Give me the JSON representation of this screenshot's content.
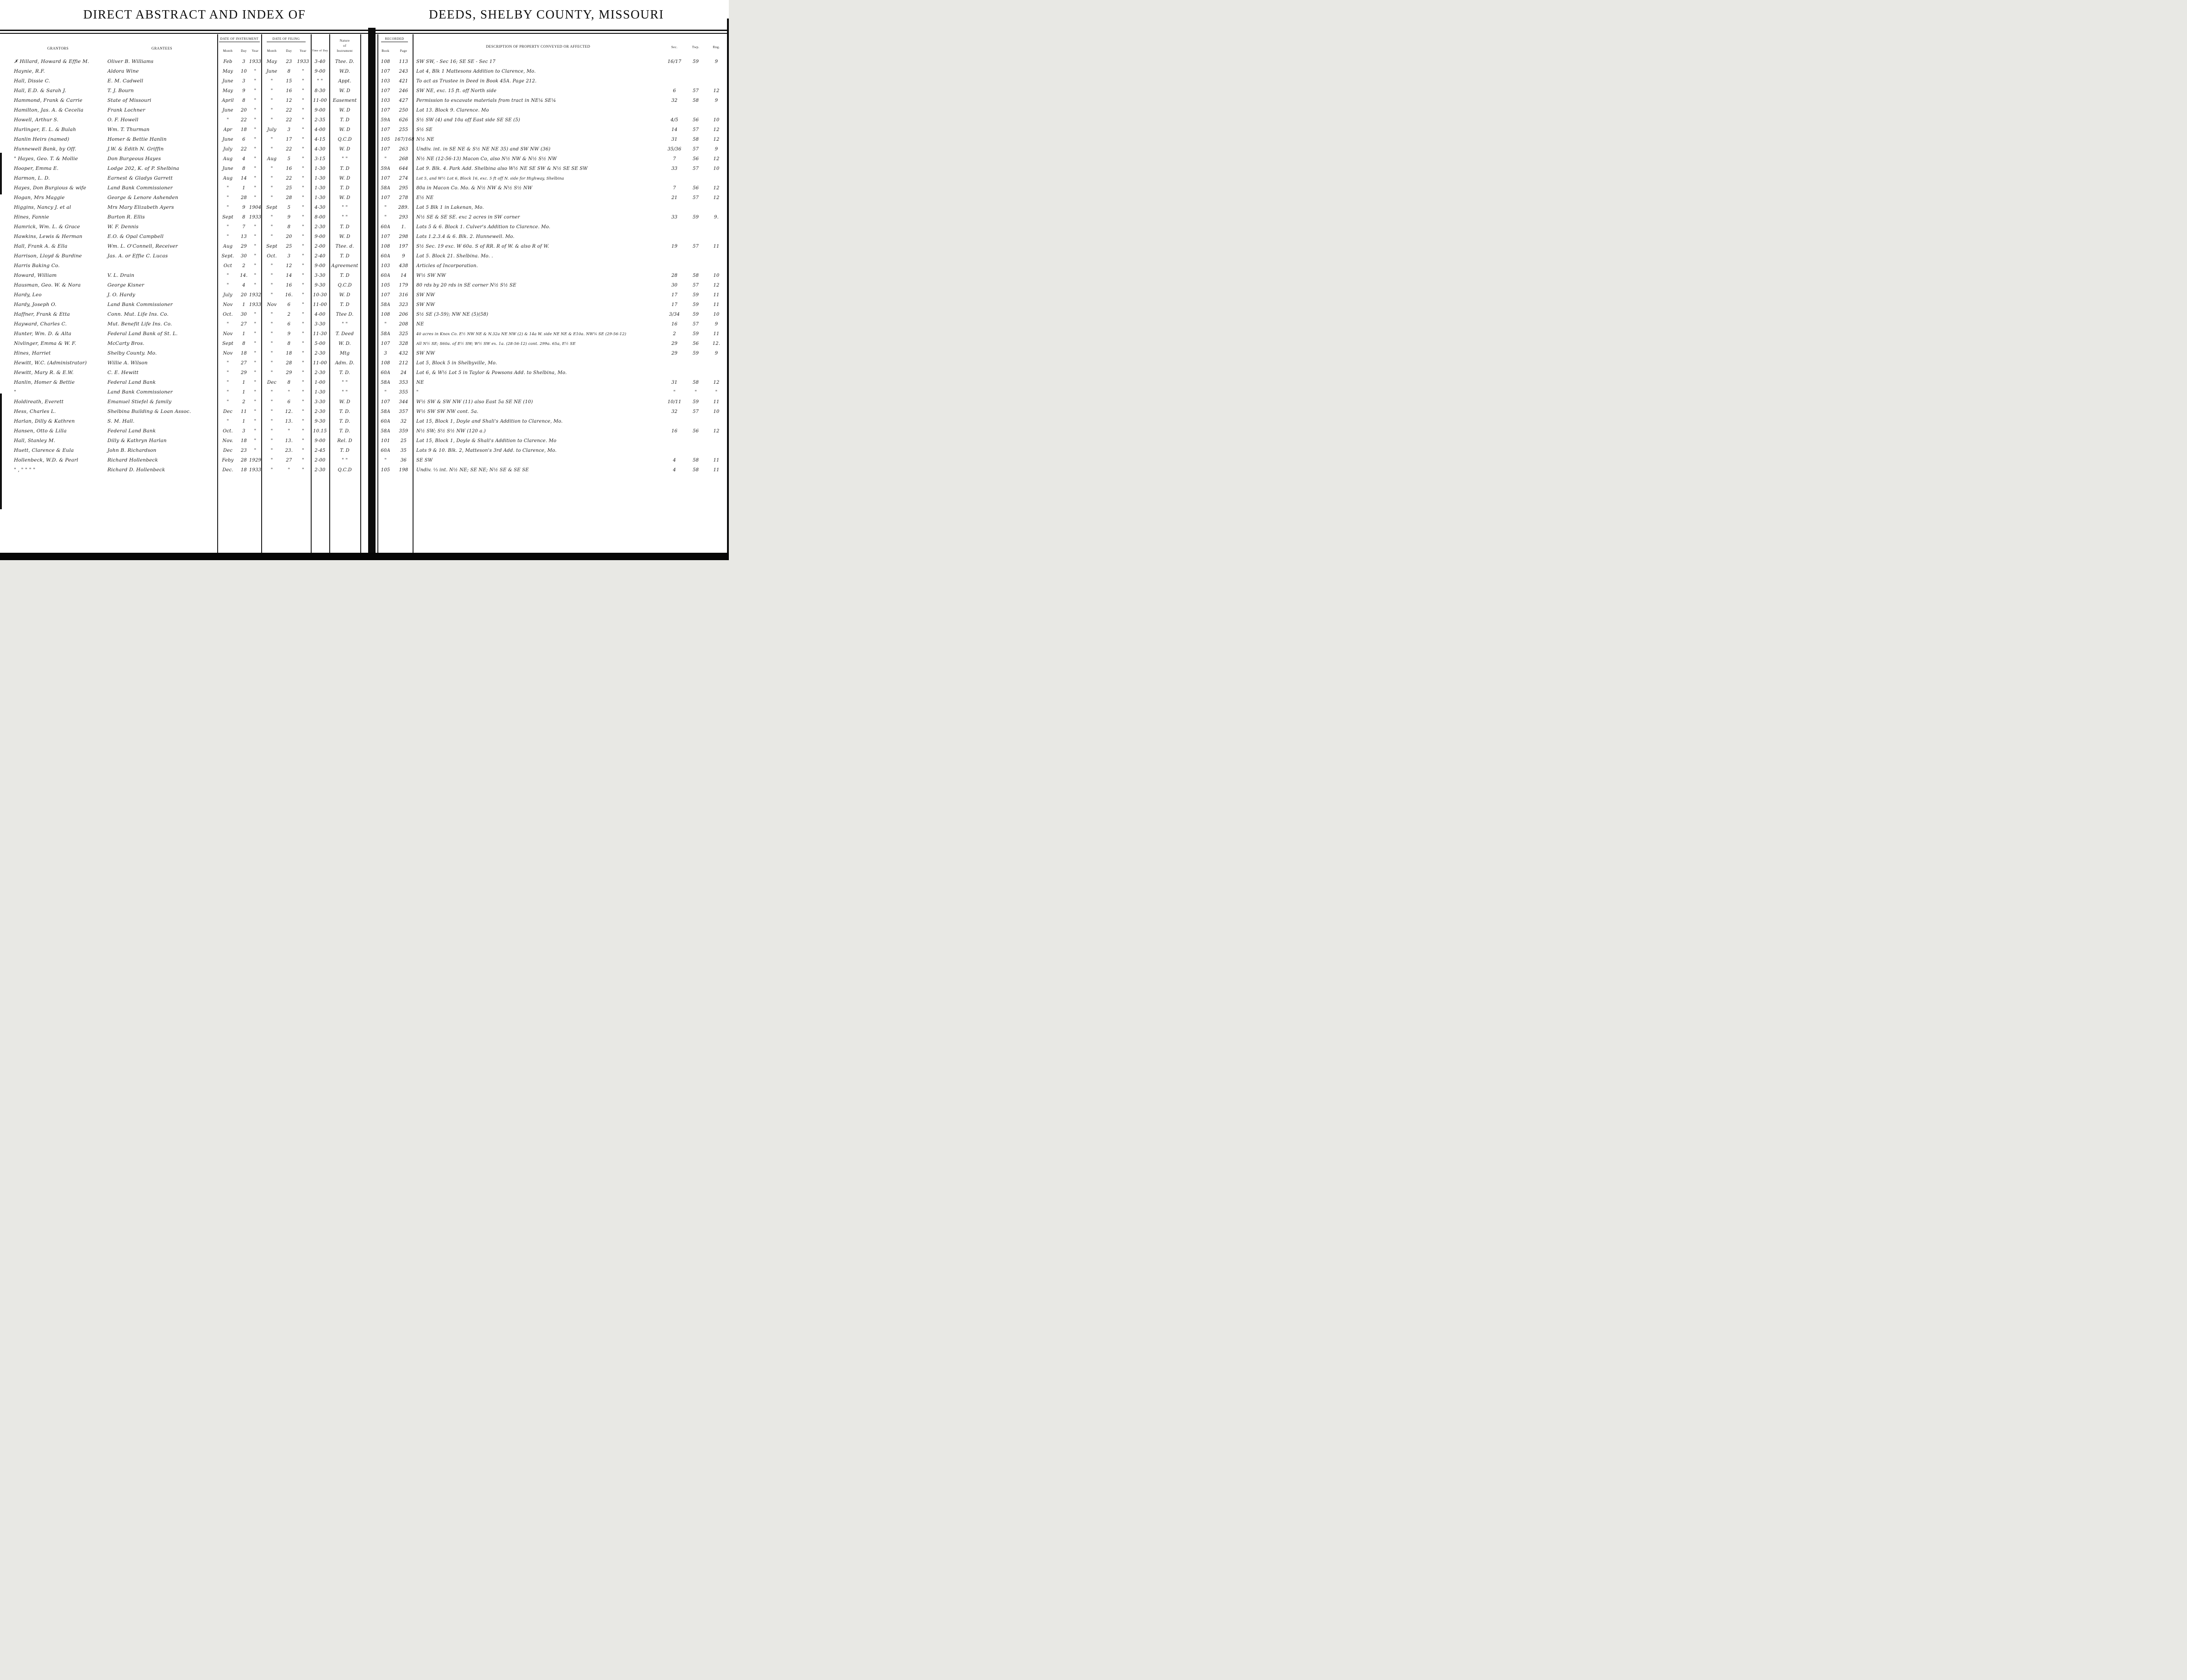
{
  "header": {
    "left_title": "DIRECT ABSTRACT AND INDEX OF",
    "right_title": "DEEDS, SHELBY COUNTY, MISSOURI",
    "grantors": "GRANTORS",
    "grantees": "GRANTEES",
    "date_of_instrument": "DATE OF INSTRUMENT",
    "date_of_filing": "DATE OF FILING",
    "month": "Month",
    "day": "Day",
    "year": "Year",
    "time_of_day": "Time of Day",
    "nature_line1": "Nature",
    "nature_line2": "of",
    "nature_line3": "Instrument",
    "recorded": "RECORDED",
    "book": "Book",
    "page": "Page",
    "description": "DESCRIPTION OF PROPERTY CONVEYED OR AFFECTED",
    "sec": "Sec.",
    "twp": "Twp.",
    "rng": "Rng."
  },
  "rows": [
    {
      "g": "✗ Hillard, Howard & Effie M.",
      "e": "Oliver B. Williams",
      "im": "Feb",
      "id": "3",
      "iy": "1933",
      "fm": "May",
      "fd": "23",
      "fy": "1933",
      "t": "3-40",
      "n": "Ttee. D.",
      "bk": "108",
      "pg": "113",
      "d": "SW SW, - Sec 16; SE SE - Sec 17",
      "s": "16/17",
      "tw": "59",
      "r": "9"
    },
    {
      "g": "Haynie, R.F.",
      "e": "Aldora Wine",
      "im": "May",
      "id": "10",
      "iy": "\"",
      "fm": "June",
      "fd": "8",
      "fy": "\"",
      "t": "9-00",
      "n": "W.D.",
      "bk": "107",
      "pg": "243",
      "d": "Lot 4, Blk 1   Mattesons Addition to Clarence, Mo.",
      "s": "",
      "tw": "",
      "r": ""
    },
    {
      "g": "Hall, Dissie C.",
      "e": "E. M. Cadwell",
      "im": "June",
      "id": "3",
      "iy": "\"",
      "fm": "\"",
      "fd": "15",
      "fy": "\"",
      "t": "\" \"",
      "n": "Appt.",
      "bk": "103",
      "pg": "421",
      "d": "To act as Trustee in Deed in Book 45A. Page 212.",
      "s": "",
      "tw": "",
      "r": ""
    },
    {
      "g": "Hall, E.D. & Sarah J.",
      "e": "T. J. Bourn",
      "im": "May",
      "id": "9",
      "iy": "\"",
      "fm": "\"",
      "fd": "16",
      "fy": "\"",
      "t": "8-30",
      "n": "W. D",
      "bk": "107",
      "pg": "246",
      "d": "SW NE, exc. 15 ft. off North side",
      "s": "6",
      "tw": "57",
      "r": "12"
    },
    {
      "g": "Hammond, Frank & Carrie",
      "e": "State of Missouri",
      "im": "April",
      "id": "8",
      "iy": "\"",
      "fm": "\"",
      "fd": "12",
      "fy": "\"",
      "t": "11-00",
      "n": "Easement",
      "bk": "103",
      "pg": "427",
      "d": "Permission to excavate materials from tract in NE¼ SE¼",
      "s": "32",
      "tw": "58",
      "r": "9"
    },
    {
      "g": "Hamilton, Jas. A. & Cecelia",
      "e": "Frank Lochner",
      "im": "June",
      "id": "20",
      "iy": "\"",
      "fm": "\"",
      "fd": "22",
      "fy": "\"",
      "t": "9-00",
      "n": "W. D",
      "bk": "107",
      "pg": "250",
      "d": "Lot 13. Block 9. Clarence. Mo",
      "s": "",
      "tw": "",
      "r": ""
    },
    {
      "g": "Howell, Arthur S.",
      "e": "O. F. Howell",
      "im": "\"",
      "id": "22",
      "iy": "\"",
      "fm": "\"",
      "fd": "22",
      "fy": "\"",
      "t": "2-35",
      "n": "T. D",
      "bk": "59A",
      "pg": "626",
      "d": "S½ SW (4) and 10a off East side SE SE (5)",
      "s": "4/5",
      "tw": "56",
      "r": "10"
    },
    {
      "g": "Hurlinger, E. L. & Bulah",
      "e": "Wm. T. Thurman",
      "im": "Apr",
      "id": "18",
      "iy": "\"",
      "fm": "July",
      "fd": "3",
      "fy": "\"",
      "t": "4-00",
      "n": "W. D",
      "bk": "107",
      "pg": "255",
      "d": "S½ SE",
      "s": "14",
      "tw": "57",
      "r": "12"
    },
    {
      "g": "Hanlin Heirs (named)",
      "e": "Homer & Bettie Hanlin",
      "im": "June",
      "id": "6",
      "iy": "\"",
      "fm": "\"",
      "fd": "17",
      "fy": "\"",
      "t": "4-15",
      "n": "Q.C.D",
      "bk": "105",
      "pg": "167/168",
      "d": "N½ NE",
      "s": "31",
      "tw": "58",
      "r": "12"
    },
    {
      "g": "Hunnewell Bank, by Off.",
      "e": "J.W. & Edith N. Griffin",
      "im": "July",
      "id": "22",
      "iy": "\"",
      "fm": "\"",
      "fd": "22",
      "fy": "\"",
      "t": "4-30",
      "n": "W. D",
      "bk": "107",
      "pg": "263",
      "d": "Undiv. int. in SE NE & S½ NE NE 35) and SW NW (36)",
      "s": "35/36",
      "tw": "57",
      "r": "9"
    },
    {
      "g": "\" Hayes, Geo. T. & Mollie",
      "e": "Don Burgeous Hayes",
      "im": "Aug",
      "id": "4",
      "iy": "\"",
      "fm": "Aug",
      "fd": "5",
      "fy": "\"",
      "t": "3-15",
      "n": "\" \"",
      "bk": "\"",
      "pg": "268",
      "d": "N½ NE (12-56-13) Macon Co, also N½ NW & N½ S½ NW",
      "s": "7",
      "tw": "56",
      "r": "12"
    },
    {
      "g": "Hooper, Emma E.",
      "e": "Lodge 202, K. of P. Shelbina",
      "im": "June",
      "id": "8",
      "iy": "\"",
      "fm": "\"",
      "fd": "16",
      "fy": "\"",
      "t": "1-30",
      "n": "T. D",
      "bk": "59A",
      "pg": "644",
      "d": "Lot 9. Blk. 4. Park Add. Shelbina also W½ NE SE SW & N½ SE SE SW",
      "s": "33",
      "tw": "57",
      "r": "10"
    },
    {
      "g": "Harmon, L. D.",
      "e": "Earnest & Gladys Garrett",
      "im": "Aug",
      "id": "14",
      "iy": "\"",
      "fm": "\"",
      "fd": "22",
      "fy": "\"",
      "t": "1-30",
      "n": "W. D",
      "bk": "107",
      "pg": "274",
      "d": "Lot 5, and W½ Lot 6, Block 16, exc. 5 ft off N. side for Highway, Shelbina",
      "s": "",
      "tw": "",
      "r": ""
    },
    {
      "g": "Hayes, Don Burgious & wife",
      "e": "Land Bank Commissioner",
      "im": "\"",
      "id": "1",
      "iy": "\"",
      "fm": "\"",
      "fd": "25",
      "fy": "\"",
      "t": "1-30",
      "n": "T. D",
      "bk": "58A",
      "pg": "295",
      "d": "80a in Macon Co. Mo. & N½ NW & N½ S½ NW",
      "s": "7",
      "tw": "56",
      "r": "12"
    },
    {
      "g": "Hogan, Mrs Maggie",
      "e": "George & Lenore Ashenden",
      "im": "\"",
      "id": "28",
      "iy": "\"",
      "fm": "\"",
      "fd": "28",
      "fy": "\"",
      "t": "1-30",
      "n": "W. D",
      "bk": "107",
      "pg": "278",
      "d": "E½ NE",
      "s": "21",
      "tw": "57",
      "r": "12"
    },
    {
      "g": "Higgins, Nancy J. et al",
      "e": "Mrs Mary Elizabeth Ayers",
      "im": "\"",
      "id": "9",
      "iy": "1904",
      "fm": "Sept",
      "fd": "5",
      "fy": "\"",
      "t": "4-30",
      "n": "\" \"",
      "bk": "\"",
      "pg": "289.",
      "d": "Lot 5 Blk 1 in Lakenan, Mo.",
      "s": "",
      "tw": "",
      "r": ""
    },
    {
      "g": "Hines, Fannie",
      "e": "Burton R. Ellis",
      "im": "Sept",
      "id": "8",
      "iy": "1933",
      "fm": "\"",
      "fd": "9",
      "fy": "\"",
      "t": "8-00",
      "n": "\" \"",
      "bk": "\"",
      "pg": "293",
      "d": "N½ SE & SE SE. exc 2 acres in SW corner",
      "s": "33",
      "tw": "59",
      "r": "9."
    },
    {
      "g": "Hamrick, Wm. L. & Grace",
      "e": "W. F. Dennis",
      "im": "\"",
      "id": "7",
      "iy": "\"",
      "fm": "\"",
      "fd": "8",
      "fy": "\"",
      "t": "2-30",
      "n": "T. D",
      "bk": "60A",
      "pg": "1.",
      "d": "Lots 5 & 6. Block 1. Culver's Addition to Clarence. Mo.",
      "s": "",
      "tw": "",
      "r": ""
    },
    {
      "g": "Hawkins, Lewis & Herman",
      "e": "E.O. & Opal Campbell",
      "im": "\"",
      "id": "13",
      "iy": "\"",
      "fm": "\"",
      "fd": "20",
      "fy": "\"",
      "t": "9-00",
      "n": "W. D",
      "bk": "107",
      "pg": "298",
      "d": "Lots 1.2.3.4 & 6. Blk. 2. Hunnewell. Mo.",
      "s": "",
      "tw": "",
      "r": ""
    },
    {
      "g": "Hall, Frank A. & Ella",
      "e": "Wm. L. O'Connell, Receiver",
      "im": "Aug",
      "id": "29",
      "iy": "\"",
      "fm": "Sept",
      "fd": "25",
      "fy": "\"",
      "t": "2-00",
      "n": "Ttee. d.",
      "bk": "108",
      "pg": "197",
      "d": "S½ Sec. 19 exc. W 60a. S of RR. R of W. & also R of W.",
      "s": "19",
      "tw": "57",
      "r": "11"
    },
    {
      "g": "Harrison, Lloyd & Burdine",
      "e": "Jas. A. or Effie C. Lucas",
      "im": "Sept.",
      "id": "30",
      "iy": "\"",
      "fm": "Oct.",
      "fd": "3",
      "fy": "\"",
      "t": "2-40",
      "n": "T. D",
      "bk": "60A",
      "pg": "9",
      "d": "Lot 5. Block 21. Shelbina. Mo. .",
      "s": "",
      "tw": "",
      "r": ""
    },
    {
      "g": "Harris Baking Co.",
      "e": "",
      "im": "Oct",
      "id": "2",
      "iy": "\"",
      "fm": "\"",
      "fd": "12",
      "fy": "\"",
      "t": "9-00",
      "n": "Agreement",
      "bk": "103",
      "pg": "438",
      "d": "Articles of Incorporation.",
      "s": "",
      "tw": "",
      "r": ""
    },
    {
      "g": "Howard, William",
      "e": "V. L. Drain",
      "im": "\"",
      "id": "14.",
      "iy": "\"",
      "fm": "\"",
      "fd": "14",
      "fy": "\"",
      "t": "3-30",
      "n": "T. D",
      "bk": "60A",
      "pg": "14",
      "d": "W½ SW NW",
      "s": "28",
      "tw": "58",
      "r": "10"
    },
    {
      "g": "Hausman, Geo. W. & Nora",
      "e": "George Kisner",
      "im": "\"",
      "id": "4",
      "iy": "\"",
      "fm": "\"",
      "fd": "16",
      "fy": "\"",
      "t": "9-30",
      "n": "Q.C.D",
      "bk": "105",
      "pg": "179",
      "d": "80 rds by 20 rds in SE corner N½ S½ SE",
      "s": "30",
      "tw": "57",
      "r": "12"
    },
    {
      "g": "Hardy, Leo",
      "e": "J. O. Hardy",
      "im": "July",
      "id": "20",
      "iy": "1932",
      "fm": "\"",
      "fd": "16.",
      "fy": "\"",
      "t": "10-30",
      "n": "W. D",
      "bk": "107",
      "pg": "316",
      "d": "SW NW",
      "s": "17",
      "tw": "59",
      "r": "11"
    },
    {
      "g": "Hardy, Joseph O.",
      "e": "Land Bank Commissioner",
      "im": "Nov",
      "id": "1",
      "iy": "1933",
      "fm": "Nov",
      "fd": "6",
      "fy": "\"",
      "t": "11-00",
      "n": "T. D",
      "bk": "58A",
      "pg": "323",
      "d": "SW NW",
      "s": "17",
      "tw": "59",
      "r": "11"
    },
    {
      "g": "Haffner, Frank & Etta",
      "e": "Conn. Mut. Life Ins. Co.",
      "im": "Oct.",
      "id": "30",
      "iy": "\"",
      "fm": "\"",
      "fd": "2",
      "fy": "\"",
      "t": "4-00",
      "n": "Ttee D.",
      "bk": "108",
      "pg": "206",
      "d": "S½ SE (3-59); NW NE (5)(58)",
      "s": "3/34",
      "tw": "59",
      "r": "10"
    },
    {
      "g": "Hayward, Charles C.",
      "e": "Mut. Benefit Life Ins. Co.",
      "im": "\"",
      "id": "27",
      "iy": "\"",
      "fm": "\"",
      "fd": "6",
      "fy": "\"",
      "t": "3-30",
      "n": "\" \"",
      "bk": "\"",
      "pg": "208",
      "d": "NE",
      "s": "16",
      "tw": "57",
      "r": "9"
    },
    {
      "g": "Hunter, Wm. D. & Alta",
      "e": "Federal Land Bank of St. L.",
      "im": "Nov",
      "id": "1",
      "iy": "\"",
      "fm": "\"",
      "fd": "9",
      "fy": "\"",
      "t": "11-30",
      "n": "T. Deed",
      "bk": "58A",
      "pg": "325",
      "d": "40 acres in Knox Co. E½ NW NE & N.32a NE NW (2) & 14a W. side NE NE & E10a. NW¼ SE (29-56-12)",
      "s": "2",
      "tw": "59",
      "r": "11"
    },
    {
      "g": "Nivlinger, Emma & W. F.",
      "e": "McCarty Bros.",
      "im": "Sept",
      "id": "8",
      "iy": "\"",
      "fm": "\"",
      "fd": "8",
      "fy": "\"",
      "t": "5-00",
      "n": "W. D.",
      "bk": "107",
      "pg": "328",
      "d": "All N½ SE; S60a. of E½ SW; W½ SW ex. 1a. (28-56-12) cont. 299a. 65a, E½ SE",
      "s": "29",
      "tw": "56",
      "r": "12."
    },
    {
      "g": "Hines, Harriet",
      "e": "Shelby County. Mo.",
      "im": "Nov",
      "id": "18",
      "iy": "\"",
      "fm": "\"",
      "fd": "18",
      "fy": "\"",
      "t": "2-30",
      "n": "Mtg",
      "bk": "3",
      "pg": "432",
      "d": "SW NW",
      "s": "29",
      "tw": "59",
      "r": "9"
    },
    {
      "g": "Hewitt, W.C. (Administrator)",
      "e": "Willie A. Wilson",
      "im": "\"",
      "id": "27",
      "iy": "\"",
      "fm": "\"",
      "fd": "28",
      "fy": "\"",
      "t": "11-00",
      "n": "Adm. D.",
      "bk": "108",
      "pg": "212",
      "d": "Lot 5, Block 5 in Shelbyville, Mo.",
      "s": "",
      "tw": "",
      "r": ""
    },
    {
      "g": "Hewitt, Mary R. & E.W.",
      "e": "C. E. Hewitt",
      "im": "\"",
      "id": "29",
      "iy": "\"",
      "fm": "\"",
      "fd": "29",
      "fy": "\"",
      "t": "2-30",
      "n": "T. D.",
      "bk": "60A",
      "pg": "24",
      "d": "Lot 6, & W½ Lot 5 in Taylor & Powsons Add. to Shelbina, Mo.",
      "s": "",
      "tw": "",
      "r": ""
    },
    {
      "g": "Hanlin, Homer & Bettie",
      "e": "Federal Land Bank",
      "im": "\"",
      "id": "1",
      "iy": "\"",
      "fm": "Dec",
      "fd": "8",
      "fy": "\"",
      "t": "1-00",
      "n": "\" \"",
      "bk": "58A",
      "pg": "353",
      "d": "NE",
      "s": "31",
      "tw": "58",
      "r": "12"
    },
    {
      "g": "\"",
      "e": "Land Bank Commissioner",
      "im": "\"",
      "id": "1",
      "iy": "\"",
      "fm": "\"",
      "fd": "\"",
      "fy": "\"",
      "t": "1-30",
      "n": "\" \"",
      "bk": "\"",
      "pg": "355",
      "d": "\"",
      "s": "\"",
      "tw": "\"",
      "r": "\""
    },
    {
      "g": "Holdireath, Everett",
      "e": "Emanuel Stiefel & family",
      "im": "\"",
      "id": "2",
      "iy": "\"",
      "fm": "\"",
      "fd": "6",
      "fy": "\"",
      "t": "3-30",
      "n": "W. D",
      "bk": "107",
      "pg": "344",
      "d": "W½ SW & SW NW (11) also East 5a SE NE (10)",
      "s": "10/11",
      "tw": "59",
      "r": "11"
    },
    {
      "g": "Hess, Charles L.",
      "e": "Shelbina Building & Loan Assoc.",
      "im": "Dec",
      "id": "11",
      "iy": "\"",
      "fm": "\"",
      "fd": "12.",
      "fy": "\"",
      "t": "2-30",
      "n": "T. D.",
      "bk": "58A",
      "pg": "357",
      "d": "W½ SW SW NW    cont. 5a.",
      "s": "32",
      "tw": "57",
      "r": "10"
    },
    {
      "g": "Harlan, Dilly & Kathren",
      "e": "S. M. Hall.",
      "im": "\"",
      "id": "1",
      "iy": "\"",
      "fm": "\"",
      "fd": "13.",
      "fy": "\"",
      "t": "9-30",
      "n": "T. D.",
      "bk": "60A",
      "pg": "32",
      "d": "Lot 15, Block 1, Doyle and Shali's Addition to Clarence, Mo.",
      "s": "",
      "tw": "",
      "r": ""
    },
    {
      "g": "Hansen, Otto & Lilla",
      "e": "Federal Land Bank",
      "im": "Oct.",
      "id": "3",
      "iy": "\"",
      "fm": "\"",
      "fd": "\"",
      "fy": "\"",
      "t": "10.15",
      "n": "T. D.",
      "bk": "58A",
      "pg": "359",
      "d": "N½ SW; S½ S½ NW    (120 a.)",
      "s": "16",
      "tw": "56",
      "r": "12"
    },
    {
      "g": "Hall, Stanley M.",
      "e": "Dilly & Kathryn Harlan",
      "im": "Nov.",
      "id": "18",
      "iy": "\"",
      "fm": "\"",
      "fd": "13.",
      "fy": "\"",
      "t": "9-00",
      "n": "Rel. D",
      "bk": "101",
      "pg": "25",
      "d": "Lot 15, Block 1, Doyle & Shali's Addition to Clarence. Mo",
      "s": "",
      "tw": "",
      "r": ""
    },
    {
      "g": "Huett, Clarence & Eula",
      "e": "John B. Richardson",
      "im": "Dec",
      "id": "23",
      "iy": "\"",
      "fm": "\"",
      "fd": "23.",
      "fy": "\"",
      "t": "2-45",
      "n": "T. D",
      "bk": "60A",
      "pg": "35",
      "d": "Lots 9 & 10. Blk. 2, Matteson's 3rd Add. to Clarence, Mo.",
      "s": "",
      "tw": "",
      "r": ""
    },
    {
      "g": "Hollenbeck, W.D. & Pearl",
      "e": "Richard Hollenbeck",
      "im": "Feby",
      "id": "28",
      "iy": "1929",
      "fm": "\"",
      "fd": "27",
      "fy": "\"",
      "t": "2-00",
      "n": "\" \"",
      "bk": "\"",
      "pg": "36",
      "d": "SE SW",
      "s": "4",
      "tw": "58",
      "r": "11"
    },
    {
      "g": "\"    ,  \"  \"  \"  \"",
      "e": "Richard D. Hollenbeck",
      "im": "Dec.",
      "id": "18",
      "iy": "1933",
      "fm": "\"",
      "fd": "\"",
      "fy": "\"",
      "t": "2-30",
      "n": "Q.C.D",
      "bk": "105",
      "pg": "198",
      "d": "Undiv. ⅓ int. N½ NE; SE NE; N½ SE & SE SE",
      "s": "4",
      "tw": "58",
      "r": "11"
    }
  ]
}
